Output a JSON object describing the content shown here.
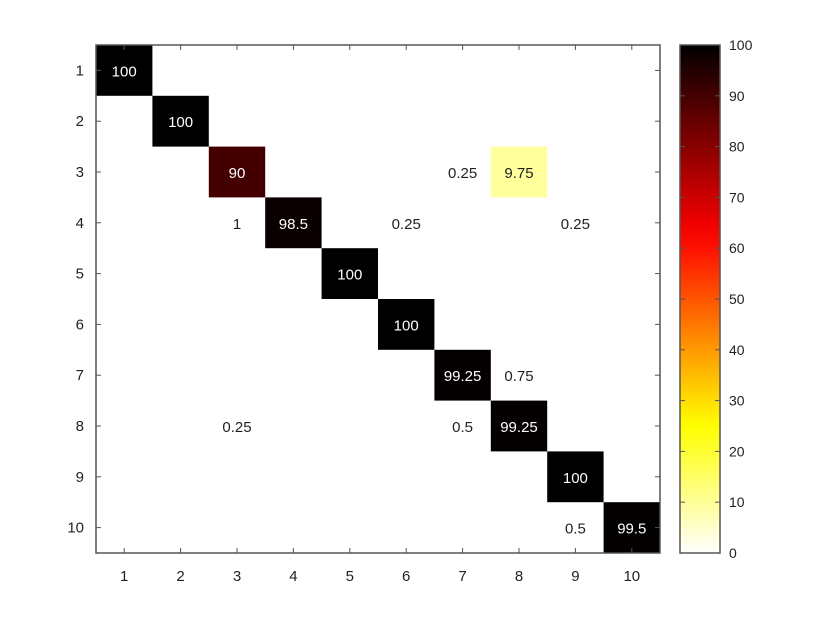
{
  "chart_data": {
    "type": "heatmap",
    "title": "",
    "xlabel": "",
    "ylabel": "",
    "x_categories": [
      "1",
      "2",
      "3",
      "4",
      "5",
      "6",
      "7",
      "8",
      "9",
      "10"
    ],
    "y_categories": [
      "1",
      "2",
      "3",
      "4",
      "5",
      "6",
      "7",
      "8",
      "9",
      "10"
    ],
    "cells": [
      {
        "row": "1",
        "col": "1",
        "value": 100,
        "label": "100"
      },
      {
        "row": "2",
        "col": "2",
        "value": 100,
        "label": "100"
      },
      {
        "row": "3",
        "col": "3",
        "value": 90,
        "label": "90"
      },
      {
        "row": "3",
        "col": "7",
        "value": 0.25,
        "label": "0.25"
      },
      {
        "row": "3",
        "col": "8",
        "value": 9.75,
        "label": "9.75"
      },
      {
        "row": "4",
        "col": "3",
        "value": 1,
        "label": "1"
      },
      {
        "row": "4",
        "col": "4",
        "value": 98.5,
        "label": "98.5"
      },
      {
        "row": "4",
        "col": "6",
        "value": 0.25,
        "label": "0.25"
      },
      {
        "row": "4",
        "col": "9",
        "value": 0.25,
        "label": "0.25"
      },
      {
        "row": "5",
        "col": "5",
        "value": 100,
        "label": "100"
      },
      {
        "row": "6",
        "col": "6",
        "value": 100,
        "label": "100"
      },
      {
        "row": "7",
        "col": "7",
        "value": 99.25,
        "label": "99.25"
      },
      {
        "row": "7",
        "col": "8",
        "value": 0.75,
        "label": "0.75"
      },
      {
        "row": "8",
        "col": "3",
        "value": 0.25,
        "label": "0.25"
      },
      {
        "row": "8",
        "col": "7",
        "value": 0.5,
        "label": "0.5"
      },
      {
        "row": "8",
        "col": "8",
        "value": 99.25,
        "label": "99.25"
      },
      {
        "row": "9",
        "col": "9",
        "value": 100,
        "label": "100"
      },
      {
        "row": "10",
        "col": "9",
        "value": 0.5,
        "label": "0.5"
      },
      {
        "row": "10",
        "col": "10",
        "value": 99.5,
        "label": "99.5"
      }
    ],
    "colorbar": {
      "colormap": "hot-reversed",
      "range": [
        0,
        100
      ],
      "ticks": [
        0,
        10,
        20,
        30,
        40,
        50,
        60,
        70,
        80,
        90,
        100
      ]
    },
    "grid": false
  },
  "colors": {
    "axis": "#555555",
    "text_dark": "#222222",
    "text_light": "#ffffff",
    "background": "#ffffff"
  }
}
